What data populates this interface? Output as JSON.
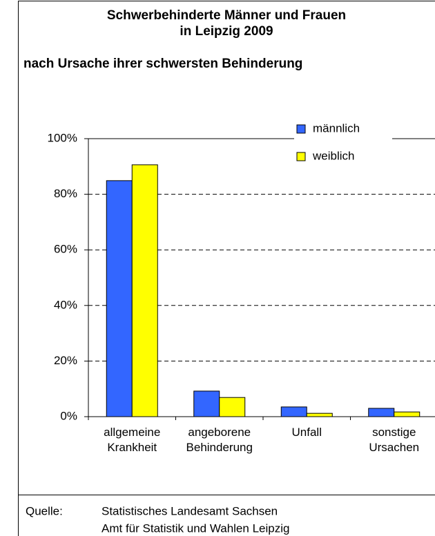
{
  "chart_data": {
    "type": "bar",
    "title": [
      "Schwerbehinderte Männer und Frauen",
      "in Leipzig 2009",
      "nach Ursache ihrer schwersten Behinderung"
    ],
    "categories": [
      [
        "allgemeine",
        "Krankheit"
      ],
      [
        "angeborene",
        "Behinderung"
      ],
      [
        "Unfall"
      ],
      [
        "sonstige",
        "Ursachen"
      ]
    ],
    "series": [
      {
        "name": "männlich",
        "color": "#3366ff",
        "values": [
          84.9,
          9.2,
          3.5,
          3.0
        ]
      },
      {
        "name": "weiblich",
        "color": "#ffff00",
        "values": [
          90.6,
          6.9,
          1.2,
          1.7
        ]
      }
    ],
    "ylim": [
      0,
      100
    ],
    "yticks": [
      {
        "value": 0,
        "label": "0%"
      },
      {
        "value": 20,
        "label": "20%"
      },
      {
        "value": 40,
        "label": "40%"
      },
      {
        "value": 60,
        "label": "60%"
      },
      {
        "value": 80,
        "label": "80%"
      },
      {
        "value": 100,
        "label": "100%"
      }
    ],
    "grid": true,
    "legend": "top-right",
    "source": {
      "label": "Quelle:",
      "lines": [
        "Statistisches Landesamt Sachsen",
        "Amt für Statistik und Wahlen Leipzig"
      ]
    }
  }
}
